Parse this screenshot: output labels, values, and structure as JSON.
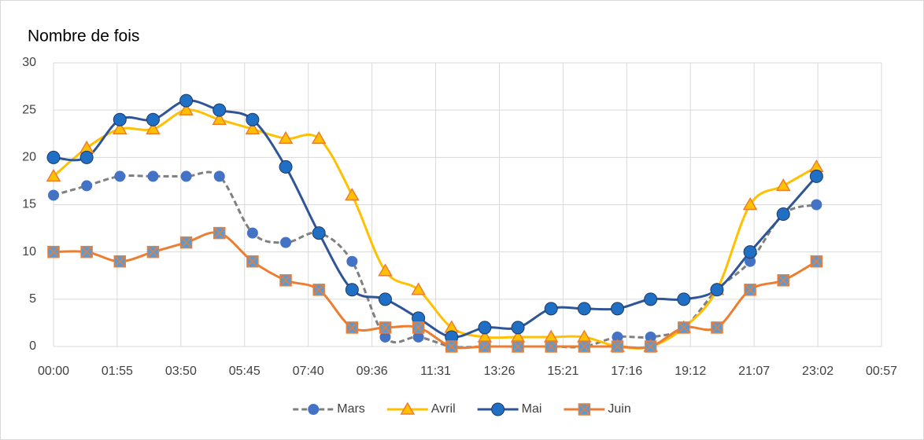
{
  "chart_data": {
    "type": "line",
    "title": "Nombre de fois",
    "x": [
      0,
      60,
      120,
      180,
      240,
      300,
      360,
      420,
      480,
      540,
      600,
      660,
      720,
      780,
      840,
      900,
      960,
      1020,
      1080,
      1140,
      1200,
      1260,
      1320,
      1380
    ],
    "series": [
      {
        "name": "Mars",
        "color": "#7f7f7f",
        "marker_color": "#4472c4",
        "marker": "circle",
        "dashed": true,
        "values": [
          16,
          17,
          18,
          18,
          18,
          18,
          12,
          11,
          12,
          9,
          1,
          1,
          0,
          0,
          0,
          0,
          0,
          1,
          1,
          2,
          6,
          9,
          14,
          15
        ]
      },
      {
        "name": "Avril",
        "color": "#ffc000",
        "marker_color": "#ed7d31",
        "marker": "triangle",
        "dashed": false,
        "values": [
          18,
          21,
          23,
          23,
          25,
          24,
          23,
          22,
          22,
          16,
          8,
          6,
          2,
          1,
          1,
          1,
          1,
          0,
          0,
          2,
          6,
          15,
          17,
          19
        ]
      },
      {
        "name": "Mai",
        "color": "#2f5597",
        "marker_color": "#1f6fc5",
        "marker": "circle",
        "dashed": false,
        "values": [
          20,
          20,
          24,
          24,
          26,
          25,
          24,
          19,
          12,
          6,
          5,
          3,
          1,
          2,
          2,
          4,
          4,
          4,
          5,
          5,
          6,
          10,
          14,
          18
        ]
      },
      {
        "name": "Juin",
        "color": "#ed7d31",
        "marker_color": "#5b9bd5",
        "marker": "square",
        "dashed": false,
        "values": [
          10,
          10,
          9,
          10,
          11,
          12,
          9,
          7,
          6,
          2,
          2,
          2,
          0,
          0,
          0,
          0,
          0,
          0,
          0,
          2,
          2,
          6,
          7,
          9
        ]
      }
    ],
    "xlim": [
      0,
      1497.6
    ],
    "xticks": [
      {
        "value": 0,
        "label": "00:00"
      },
      {
        "value": 115.2,
        "label": "01:55"
      },
      {
        "value": 230.4,
        "label": "03:50"
      },
      {
        "value": 345.6,
        "label": "05:45"
      },
      {
        "value": 460.8,
        "label": "07:40"
      },
      {
        "value": 576,
        "label": "09:36"
      },
      {
        "value": 691.2,
        "label": "11:31"
      },
      {
        "value": 806.4,
        "label": "13:26"
      },
      {
        "value": 921.6,
        "label": "15:21"
      },
      {
        "value": 1036.8,
        "label": "17:16"
      },
      {
        "value": 1152,
        "label": "19:12"
      },
      {
        "value": 1267.2,
        "label": "21:07"
      },
      {
        "value": 1382.4,
        "label": "23:02"
      },
      {
        "value": 1497.6,
        "label": "00:57"
      }
    ],
    "ylim": [
      0,
      30
    ],
    "yticks": [
      0,
      5,
      10,
      15,
      20,
      25,
      30
    ],
    "grid": true,
    "legend": "bottom"
  }
}
